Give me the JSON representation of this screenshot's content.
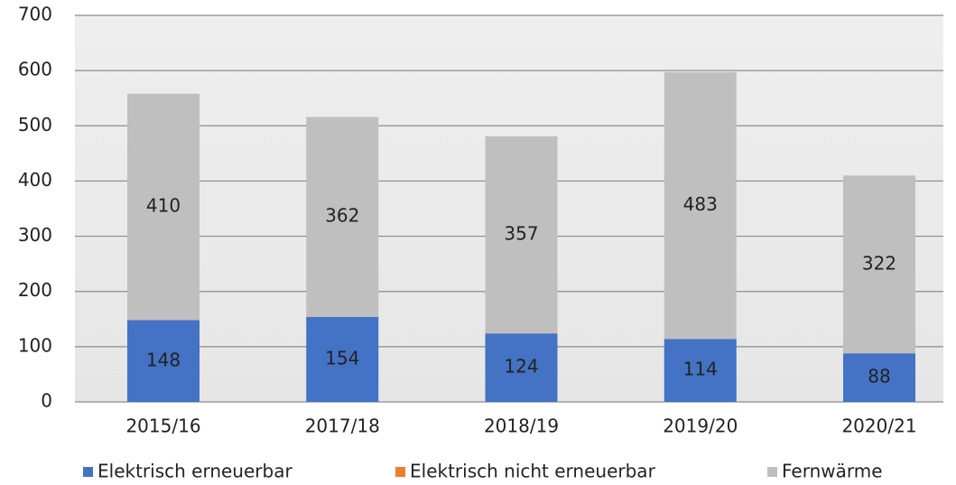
{
  "chart_data": {
    "type": "stacked-bar",
    "categories": [
      "2015/16",
      "2017/18",
      "2018/19",
      "2019/20",
      "2020/21"
    ],
    "series": [
      {
        "name": "Elektrisch erneuerbar",
        "color": "#4472c4",
        "values": [
          148,
          154,
          124,
          114,
          88
        ]
      },
      {
        "name": "Elektrisch nicht erneuerbar",
        "color": "#ed7d31",
        "values": [
          0,
          0,
          0,
          0,
          0
        ]
      },
      {
        "name": "Fernwärme",
        "color": "#bfbfbf",
        "values": [
          410,
          362,
          357,
          483,
          322
        ]
      }
    ],
    "ylim": [
      0,
      700
    ],
    "yticks": [
      0,
      100,
      200,
      300,
      400,
      500,
      600,
      700
    ],
    "grid": true,
    "legend": "bottom"
  }
}
